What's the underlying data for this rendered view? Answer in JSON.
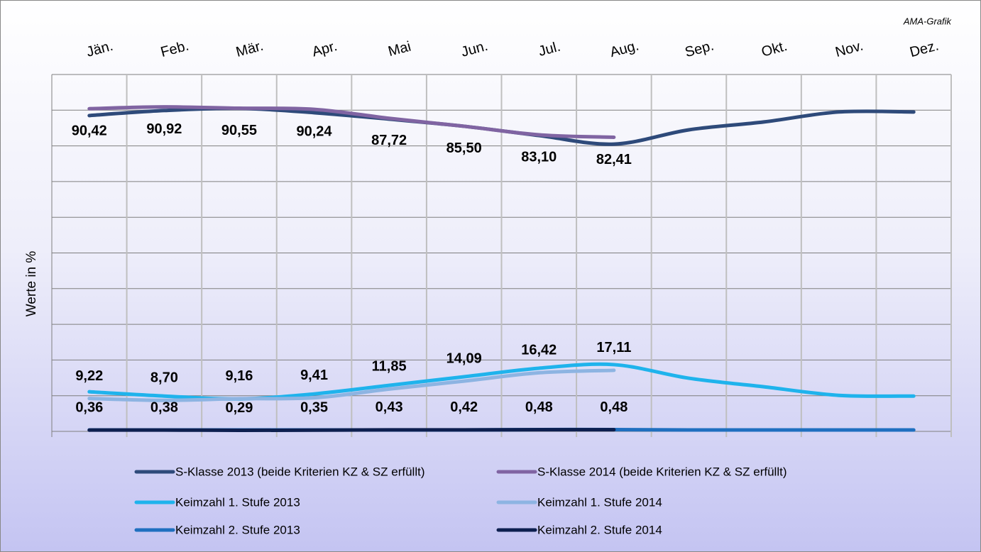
{
  "chart_data": {
    "type": "line",
    "title": "AMA-Grafik",
    "y_label": "Werte in %",
    "categories": [
      "Jän.",
      "Feb.",
      "Mär.",
      "Apr.",
      "Mai",
      "Jun.",
      "Jul.",
      "Aug.",
      "Sep.",
      "Okt.",
      "Nov.",
      "Dez."
    ],
    "ylim": [
      0,
      100
    ],
    "yticks": [
      0,
      10,
      20,
      30,
      40,
      50,
      60,
      70,
      80,
      90,
      100
    ],
    "grid": true,
    "legend": "bottom",
    "series": [
      {
        "name": "S-Klasse 2013 (beide Kriterien KZ & SZ erfüllt)",
        "color": "#2e4a7a",
        "values": [
          88.5,
          89.9,
          90.5,
          89.3,
          87.5,
          85.5,
          82.9,
          80.5,
          84.5,
          86.7,
          89.5,
          89.5
        ]
      },
      {
        "name": "S-Klasse 2014 (beide Kriterien KZ & SZ erfüllt)",
        "color": "#8064a2",
        "values": [
          90.42,
          90.92,
          90.55,
          90.24,
          87.72,
          85.5,
          83.1,
          82.41,
          null,
          null,
          null,
          null
        ],
        "value_labels": [
          "90,42",
          "90,92",
          "90,55",
          "90,24",
          "87,72",
          "85,50",
          "83,10",
          "82,41",
          null,
          null,
          null,
          null
        ]
      },
      {
        "name": "Keimzahl 1. Stufe 2013",
        "color": "#1fb3ec",
        "values": [
          11.1,
          9.9,
          9.1,
          10.5,
          12.9,
          15.3,
          17.7,
          18.7,
          14.9,
          12.5,
          10.1,
          9.9
        ]
      },
      {
        "name": "Keimzahl 1. Stufe 2014",
        "color": "#8db4e2",
        "values": [
          9.22,
          8.7,
          9.16,
          9.41,
          11.85,
          14.09,
          16.42,
          17.11,
          null,
          null,
          null,
          null
        ],
        "value_labels": [
          "9,22",
          "8,70",
          "9,16",
          "9,41",
          "11,85",
          "14,09",
          "16,42",
          "17,11",
          null,
          null,
          null,
          null
        ]
      },
      {
        "name": "Keimzahl 2. Stufe 2013",
        "color": "#1f6fbf",
        "values": [
          0.4,
          0.4,
          0.4,
          0.4,
          0.4,
          0.4,
          0.5,
          0.5,
          0.4,
          0.4,
          0.4,
          0.4
        ]
      },
      {
        "name": "Keimzahl 2. Stufe 2014",
        "color": "#0d1f4f",
        "values": [
          0.36,
          0.38,
          0.29,
          0.35,
          0.43,
          0.42,
          0.48,
          0.48,
          null,
          null,
          null,
          null
        ],
        "value_labels": [
          "0,36",
          "0,38",
          "0,29",
          "0,35",
          "0,43",
          "0,42",
          "0,48",
          "0,48",
          null,
          null,
          null,
          null
        ]
      }
    ]
  }
}
